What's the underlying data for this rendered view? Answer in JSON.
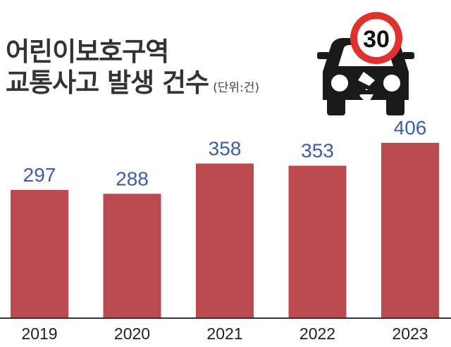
{
  "header": {
    "title_line1": "어린이보호구역",
    "title_line2": "교통사고 발생 건수",
    "unit": "(단위:건)"
  },
  "icon": {
    "name": "crashed-car-icon",
    "speed_limit": "30"
  },
  "colors": {
    "bar": "#bb4a50",
    "value_label": "#3a5fa8",
    "axis": "#333333",
    "badge_ring": "#e03131"
  },
  "chart_data": {
    "type": "bar",
    "categories": [
      "2019",
      "2020",
      "2021",
      "2022",
      "2023"
    ],
    "values": [
      297,
      288,
      358,
      353,
      406
    ],
    "title": "어린이보호구역 교통사고 발생 건수",
    "unit": "건",
    "legend": "none",
    "grid": false
  }
}
